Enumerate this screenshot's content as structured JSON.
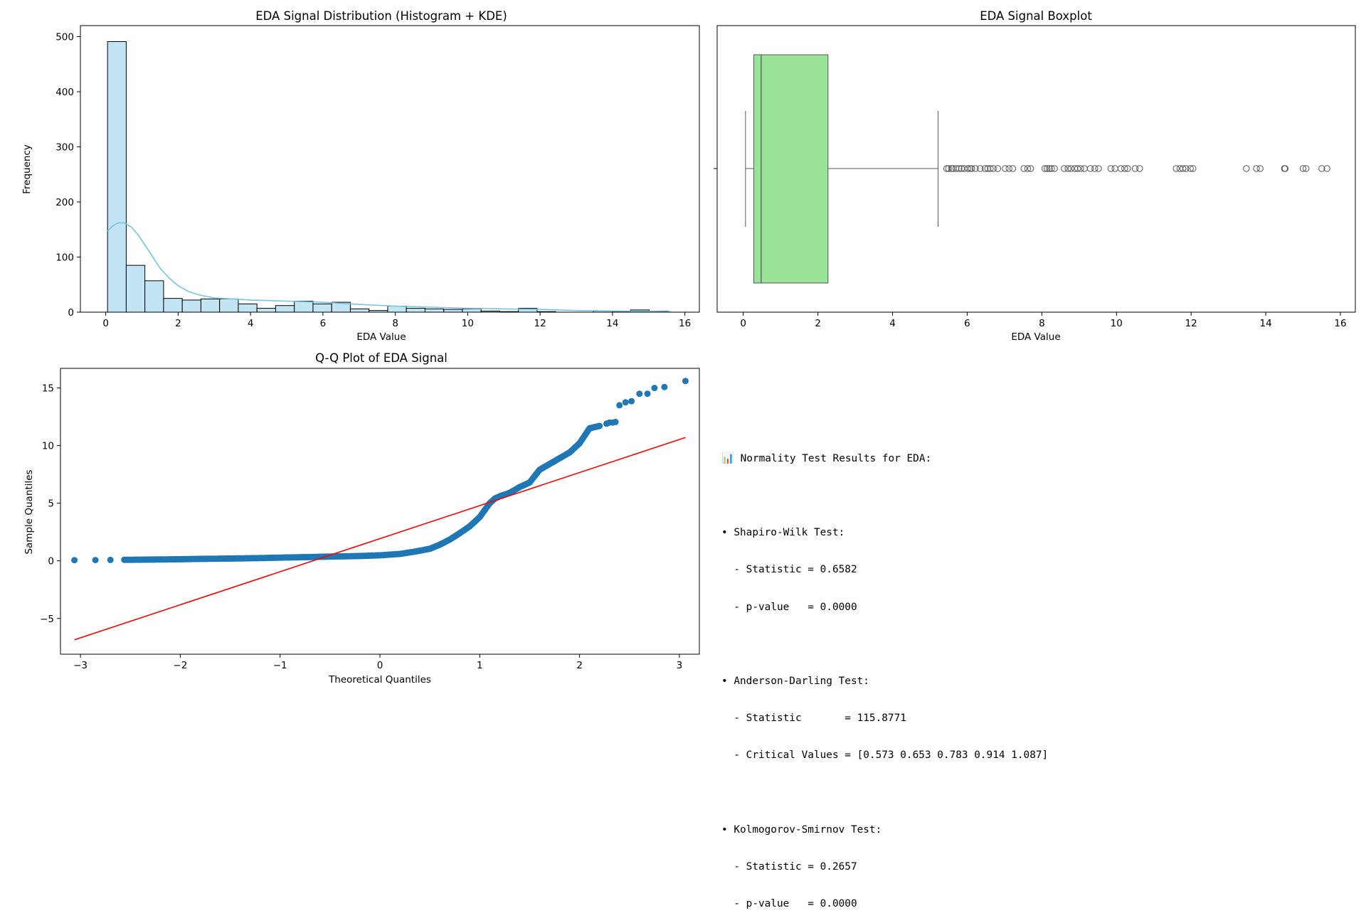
{
  "chart_data": [
    {
      "type": "bar",
      "subtype": "histogram_with_kde",
      "title": "EDA Signal Distribution (Histogram + KDE)",
      "xlabel": "EDA Value",
      "ylabel": "Frequency",
      "xlim": [
        -0.7,
        16.4
      ],
      "ylim": [
        0,
        520
      ],
      "xticks": [
        0,
        2,
        4,
        6,
        8,
        10,
        12,
        14,
        16
      ],
      "yticks": [
        0,
        100,
        200,
        300,
        400,
        500
      ],
      "bin_edges": [
        0.05,
        0.566,
        1.082,
        1.598,
        2.114,
        2.63,
        3.146,
        3.662,
        4.178,
        4.694,
        5.21,
        5.726,
        6.242,
        6.758,
        7.274,
        7.79,
        8.306,
        8.822,
        9.338,
        9.854,
        10.37,
        10.886,
        11.402,
        11.918,
        12.434,
        12.95,
        13.466,
        13.982,
        14.498,
        15.014,
        15.53
      ],
      "counts": [
        491,
        85,
        57,
        25,
        22,
        24,
        24,
        15,
        7,
        12,
        20,
        15,
        18,
        6,
        3,
        11,
        7,
        6,
        5,
        6,
        2,
        1,
        7,
        1,
        0,
        0,
        2,
        1,
        4,
        2
      ],
      "bar_color": "#c3e5f3",
      "kde_color": "#77c4e1",
      "kde": {
        "x": [
          0.05,
          0.2,
          0.35,
          0.5,
          0.7,
          0.9,
          1.1,
          1.3,
          1.5,
          1.75,
          2.0,
          2.3,
          2.6,
          3.0,
          3.5,
          4.0,
          5.0,
          6.0,
          7.0,
          8.0,
          9.0,
          10.0,
          11.0,
          12.0,
          13.0,
          14.0,
          15.0,
          15.6
        ],
        "y": [
          147,
          157,
          162,
          162,
          155,
          140,
          120,
          100,
          80,
          62,
          48,
          37,
          31,
          26,
          24,
          22,
          20,
          18,
          14,
          11,
          9,
          7,
          6,
          5,
          3,
          2,
          1.5,
          1
        ]
      }
    },
    {
      "type": "boxplot",
      "title": "EDA Signal Boxplot",
      "xlabel": "EDA Value",
      "xlim": [
        -0.7,
        16.4
      ],
      "xticks": [
        0,
        2,
        4,
        6,
        8,
        10,
        12,
        14,
        16
      ],
      "box": {
        "q1": 0.28,
        "median": 0.48,
        "q3": 2.27,
        "whisker_low": 0.06,
        "whisker_high": 5.22
      },
      "box_color": "#9be39b",
      "outliers": [
        5.45,
        5.5,
        5.58,
        5.62,
        5.7,
        5.78,
        5.85,
        5.92,
        6.02,
        6.08,
        6.12,
        6.22,
        6.35,
        6.48,
        6.55,
        6.62,
        6.7,
        6.82,
        7.02,
        7.12,
        7.22,
        7.52,
        7.62,
        7.7,
        8.08,
        8.14,
        8.2,
        8.26,
        8.34,
        8.6,
        8.7,
        8.78,
        8.88,
        8.96,
        9.04,
        9.14,
        9.3,
        9.42,
        9.52,
        9.85,
        9.96,
        10.12,
        10.22,
        10.3,
        10.5,
        10.62,
        11.6,
        11.7,
        11.78,
        11.86,
        11.98,
        12.05,
        13.48,
        13.75,
        13.85,
        14.5,
        14.52,
        15.0,
        15.08,
        15.5,
        15.64
      ]
    },
    {
      "type": "scatter",
      "title": "Q-Q Plot of EDA Signal",
      "xlabel": "Theoretical Quantiles",
      "ylabel": "Sample Quantiles",
      "xlim": [
        -3.2,
        3.2
      ],
      "ylim": [
        -8.1,
        16.7
      ],
      "xticks": [
        -3,
        -2,
        -1,
        0,
        1,
        2,
        3
      ],
      "yticks": [
        -5,
        0,
        5,
        10,
        15
      ],
      "point_color": "#1f77b4",
      "line_color": "#ff0000",
      "reference_line": {
        "x": [
          -3.06,
          3.06
        ],
        "y": [
          -6.85,
          10.7
        ]
      },
      "curve": {
        "x": [
          -3.06,
          -2.85,
          -2.7,
          -2.56,
          -2.4,
          -2.2,
          -2.0,
          -1.8,
          -1.5,
          -1.2,
          -1.0,
          -0.7,
          -0.5,
          -0.2,
          0.0,
          0.2,
          0.35,
          0.5,
          0.6,
          0.7,
          0.8,
          0.9,
          1.0,
          1.05,
          1.1,
          1.15,
          1.2,
          1.3,
          1.4,
          1.5,
          1.6,
          1.7,
          1.8,
          1.9,
          2.0,
          2.1,
          2.2
        ],
        "y": [
          0.06,
          0.07,
          0.08,
          0.09,
          0.1,
          0.12,
          0.14,
          0.17,
          0.2,
          0.24,
          0.28,
          0.33,
          0.37,
          0.42,
          0.48,
          0.6,
          0.8,
          1.05,
          1.4,
          1.85,
          2.4,
          3.0,
          3.8,
          4.4,
          5.0,
          5.4,
          5.6,
          5.9,
          6.4,
          6.8,
          7.9,
          8.4,
          8.9,
          9.4,
          10.2,
          11.5,
          11.7
        ]
      },
      "tail_points": [
        {
          "x": [
            2.27,
            2.3,
            2.33,
            2.36
          ],
          "y": [
            11.9,
            12.0,
            12.0,
            12.05
          ]
        },
        {
          "x": [
            2.4,
            2.46,
            2.52,
            2.6,
            2.68,
            2.75,
            2.85,
            3.06
          ],
          "y": [
            13.5,
            13.75,
            13.85,
            14.5,
            14.5,
            15.0,
            15.08,
            15.6
          ]
        }
      ]
    }
  ],
  "stats": {
    "lines": [
      "📊 Normality Test Results for EDA:",
      "",
      "• Shapiro-Wilk Test:",
      "  - Statistic = 0.6582",
      "  - p-value   = 0.0000",
      "",
      "• Anderson-Darling Test:",
      "  - Statistic       = 115.8771",
      "  - Critical Values = [0.573 0.653 0.783 0.914 1.087]",
      "",
      "• Kolmogorov-Smirnov Test:",
      "  - Statistic = 0.2657",
      "  - p-value   = 0.0000"
    ]
  }
}
